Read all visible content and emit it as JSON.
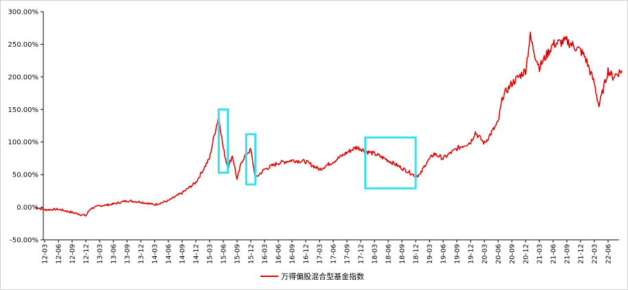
{
  "chart_data": {
    "type": "line",
    "title": "",
    "xlabel": "",
    "ylabel": "",
    "ylim": [
      -50,
      300
    ],
    "y_ticks": [
      "300.00%",
      "250.00%",
      "200.00%",
      "150.00%",
      "100.00%",
      "50.00%",
      "0.00%",
      "-50.00%"
    ],
    "y_tick_values": [
      300,
      250,
      200,
      150,
      100,
      50,
      0,
      -50
    ],
    "x_ticks": [
      "12-03",
      "12-06",
      "12-09",
      "12-12",
      "13-03",
      "13-06",
      "13-09",
      "13-12",
      "14-03",
      "14-06",
      "14-09",
      "14-12",
      "15-03",
      "15-06",
      "15-09",
      "15-12",
      "16-03",
      "16-06",
      "16-09",
      "16-12",
      "17-03",
      "17-06",
      "17-09",
      "17-12",
      "18-03",
      "18-06",
      "18-09",
      "18-12",
      "19-03",
      "19-06",
      "19-09",
      "19-12",
      "20-03",
      "20-06",
      "20-09",
      "20-12",
      "21-03",
      "21-06",
      "21-09",
      "21-12",
      "22-03",
      "22-06"
    ],
    "grid": false,
    "legend_position": "bottom",
    "series": [
      {
        "name": "万得偏股混合型基金指数",
        "color": "#e00000",
        "x": [
          "2012-01",
          "2012-03",
          "2012-06",
          "2012-09",
          "2012-12",
          "2013-01",
          "2013-03",
          "2013-06",
          "2013-09",
          "2013-12",
          "2014-03",
          "2014-06",
          "2014-09",
          "2014-12",
          "2015-03",
          "2015-04",
          "2015-05",
          "2015-06",
          "2015-07",
          "2015-08",
          "2015-09",
          "2015-10",
          "2015-11",
          "2015-12",
          "2016-01",
          "2016-03",
          "2016-06",
          "2016-09",
          "2016-12",
          "2017-03",
          "2017-06",
          "2017-09",
          "2017-11",
          "2017-12",
          "2018-01",
          "2018-03",
          "2018-06",
          "2018-09",
          "2018-12",
          "2019-01",
          "2019-02",
          "2019-04",
          "2019-06",
          "2019-09",
          "2019-12",
          "2020-01",
          "2020-03",
          "2020-06",
          "2020-07",
          "2020-09",
          "2020-12",
          "2021-01",
          "2021-02",
          "2021-03",
          "2021-06",
          "2021-09",
          "2021-12",
          "2022-01",
          "2022-03",
          "2022-04",
          "2022-06",
          "2022-07",
          "2022-09"
        ],
        "y": [
          0,
          -4,
          -3,
          -8,
          -13,
          -2,
          2,
          5,
          10,
          8,
          4,
          10,
          22,
          38,
          75,
          110,
          140,
          90,
          60,
          80,
          42,
          70,
          82,
          88,
          45,
          58,
          68,
          72,
          70,
          58,
          70,
          84,
          92,
          90,
          86,
          82,
          72,
          60,
          48,
          50,
          65,
          82,
          75,
          90,
          100,
          115,
          98,
          130,
          170,
          190,
          210,
          262,
          235,
          215,
          250,
          255,
          240,
          230,
          190,
          155,
          210,
          200,
          210
        ]
      }
    ],
    "annotations": [
      {
        "type": "box",
        "x_range": [
          "2015-05",
          "2015-07"
        ],
        "y_range": [
          53,
          150
        ],
        "color": "#33e0ee"
      },
      {
        "type": "box",
        "x_range": [
          "2015-11",
          "2016-01"
        ],
        "y_range": [
          35,
          112
        ],
        "color": "#33e0ee"
      },
      {
        "type": "box",
        "x_range": [
          "2018-01",
          "2018-12"
        ],
        "y_range": [
          29,
          107
        ],
        "color": "#33e0ee"
      }
    ]
  }
}
